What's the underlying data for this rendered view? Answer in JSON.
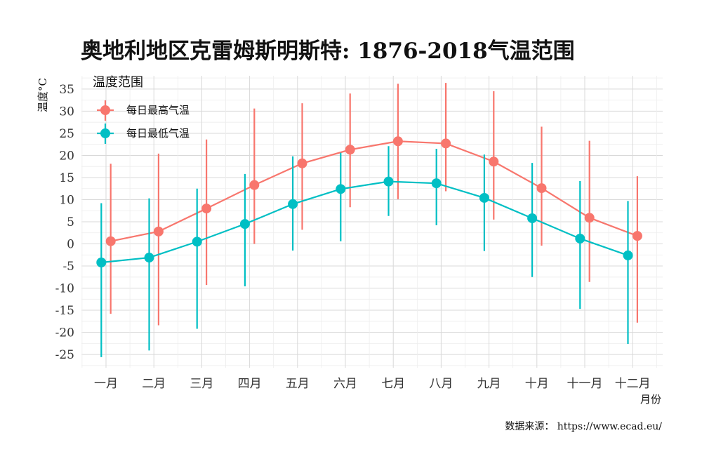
{
  "title": "奥地利地区克雷姆斯明斯特: 1876-2018气温范围",
  "caption": "数据来源： https://www.ecad.eu/",
  "colors": {
    "max": "#F8766D",
    "min": "#00BFC4"
  },
  "chart_data": {
    "type": "line",
    "xlabel": "月份",
    "ylabel": "温度°C",
    "ylim": [
      -28,
      38
    ],
    "yticks": [
      -25,
      -20,
      -15,
      -10,
      -5,
      0,
      5,
      10,
      15,
      20,
      25,
      30,
      35
    ],
    "grid": true,
    "legend": {
      "title": "温度范围",
      "placement": "top-left"
    },
    "categories": [
      "一月",
      "二月",
      "三月",
      "四月",
      "五月",
      "六月",
      "七月",
      "八月",
      "九月",
      "十月",
      "十一月",
      "十二月"
    ],
    "series": [
      {
        "name": "每日最高气温",
        "color": "#F8766D",
        "values": [
          0.6,
          2.8,
          8.0,
          13.3,
          18.2,
          21.3,
          23.2,
          22.7,
          18.6,
          12.6,
          5.9,
          1.8
        ],
        "low": [
          -15.8,
          -18.4,
          -9.3,
          0.0,
          3.2,
          8.3,
          10.1,
          11.9,
          5.5,
          -0.4,
          -8.6,
          -17.8
        ],
        "high": [
          18.1,
          20.4,
          23.6,
          30.6,
          31.8,
          34.0,
          36.2,
          36.4,
          34.5,
          26.5,
          23.3,
          15.3
        ]
      },
      {
        "name": "每日最低气温",
        "color": "#00BFC4",
        "values": [
          -4.2,
          -3.1,
          0.5,
          4.5,
          9.0,
          12.4,
          14.1,
          13.7,
          10.4,
          5.8,
          1.2,
          -2.6
        ],
        "low": [
          -25.6,
          -24.1,
          -19.2,
          -9.6,
          -1.5,
          0.6,
          6.3,
          4.2,
          -1.6,
          -7.5,
          -14.7,
          -22.6
        ],
        "high": [
          9.2,
          10.3,
          12.5,
          15.8,
          19.8,
          20.6,
          22.1,
          21.5,
          20.2,
          18.3,
          14.2,
          9.7
        ]
      }
    ]
  }
}
